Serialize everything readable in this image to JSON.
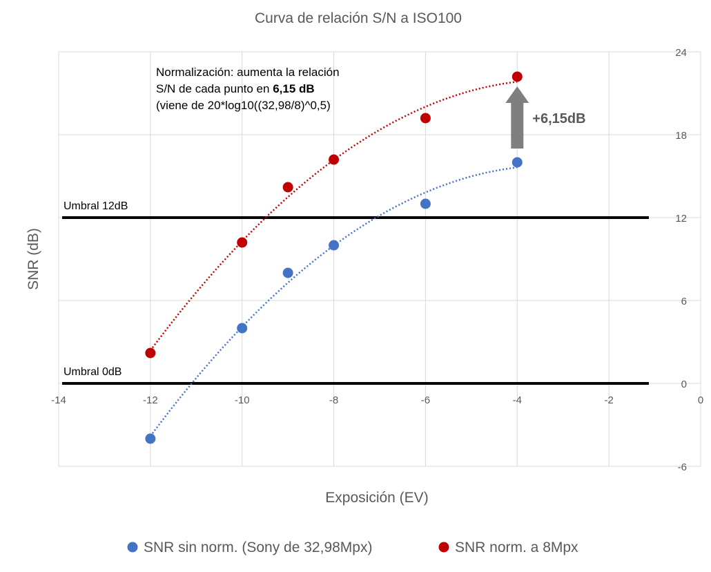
{
  "chart_data": {
    "type": "scatter",
    "title": "Curva de relación S/N a ISO100",
    "xlabel": "Exposición (EV)",
    "ylabel": "SNR (dB)",
    "xlim": [
      -14,
      0
    ],
    "ylim": [
      -6,
      24
    ],
    "x_ticks": [
      "-14",
      "-12",
      "-10",
      "-8",
      "-6",
      "-4",
      "-2",
      "0"
    ],
    "y_ticks": [
      "-6",
      "0",
      "6",
      "12",
      "18",
      "24"
    ],
    "grid": true,
    "legend_position": "bottom",
    "series": [
      {
        "name": "SNR sin norm. (Sony de 32,98Mpx)",
        "color": "#4472C4",
        "points": [
          [
            -12,
            -4.0
          ],
          [
            -10,
            4.0
          ],
          [
            -9,
            8.0
          ],
          [
            -8,
            10.0
          ],
          [
            -6,
            13.0
          ],
          [
            -4,
            16.0
          ]
        ]
      },
      {
        "name": "SNR norm. a 8Mpx",
        "color": "#C00000",
        "points": [
          [
            -12,
            2.2
          ],
          [
            -10,
            10.2
          ],
          [
            -9,
            14.2
          ],
          [
            -8,
            16.2
          ],
          [
            -6,
            19.2
          ],
          [
            -4,
            22.2
          ]
        ]
      }
    ],
    "thresholds": [
      {
        "label": "Umbral 12dB",
        "y": 12
      },
      {
        "label": "Umbral 0dB",
        "y": 0
      }
    ],
    "annotation": {
      "line1": "Normalización: aumenta la relación",
      "line2_prefix": "S/N de cada punto en ",
      "line2_bold": "6,15 dB",
      "line3": "(viene de 20*log10((32,98/8)^0,5)",
      "arrow_label": "+6,15dB"
    }
  }
}
